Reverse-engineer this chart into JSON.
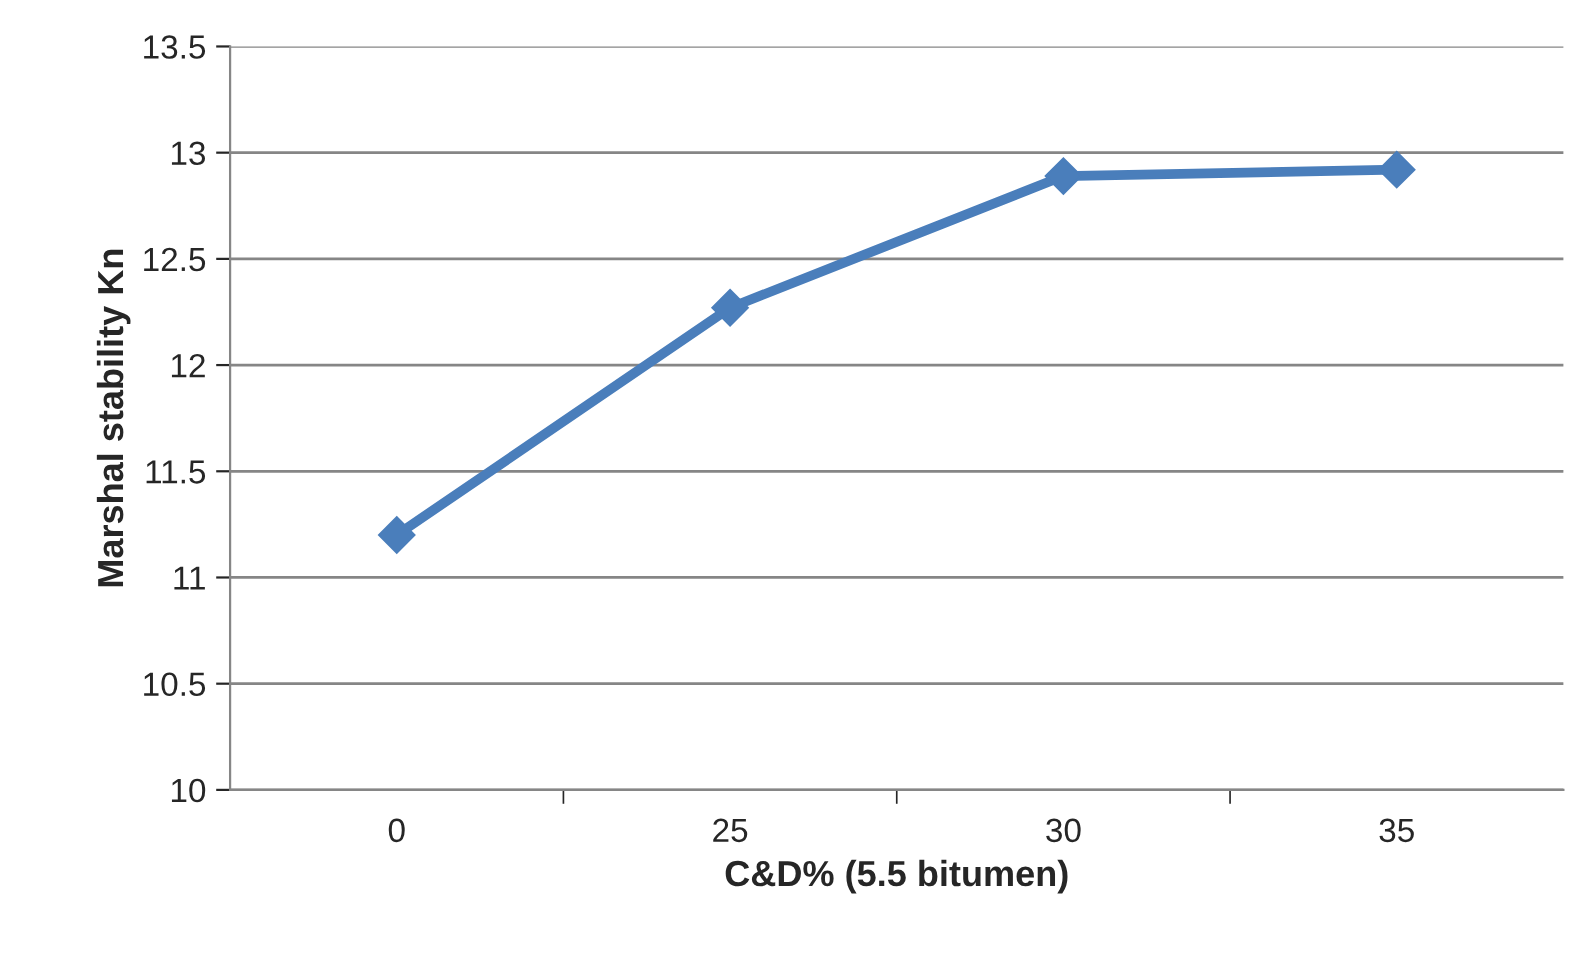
{
  "chart_data": {
    "type": "line",
    "xlabel": "C&D% (5.5 bitumen)",
    "ylabel": "Marshal stability Kn",
    "categories": [
      "0",
      "25",
      "30",
      "35"
    ],
    "series": [
      {
        "color": "#4a7ebb",
        "values": [
          11.2,
          12.27,
          12.89,
          12.92
        ]
      }
    ],
    "ylim": [
      10,
      13.5
    ],
    "yticks": [
      10,
      10.5,
      11,
      11.5,
      12,
      12.5,
      13,
      13.5
    ],
    "grid": "y",
    "marker": "diamond",
    "line_style": "solid",
    "legend": false
  }
}
